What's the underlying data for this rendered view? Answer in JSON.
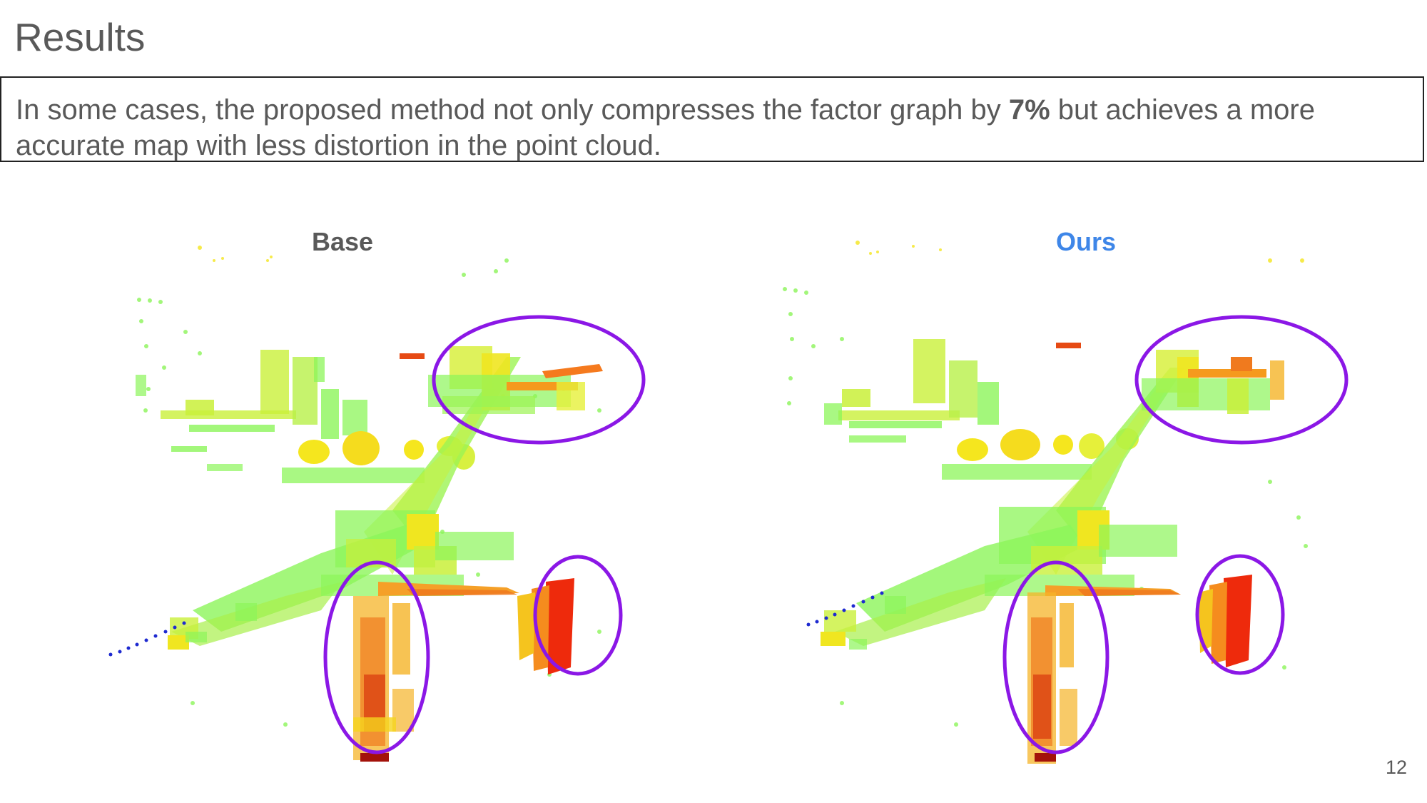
{
  "slide": {
    "title": "Results",
    "callout": {
      "before": "In some cases, the proposed method not only compresses the factor graph by ",
      "bold": "7%",
      "after": " but achieves a more accurate map with less distortion in the point cloud."
    },
    "page_number": "12"
  },
  "panels": [
    {
      "label": "Base",
      "label_color": "#595959",
      "highlight_color": "#8b17e6"
    },
    {
      "label": "Ours",
      "label_color": "#3e86e8",
      "highlight_color": "#8b17e6"
    }
  ],
  "palette": {
    "green": "#8cf55a",
    "yellow_green": "#c9f03a",
    "yellow": "#f5e61e",
    "orange": "#f59a1e",
    "red": "#ee2a0c",
    "dark_red": "#a3120a",
    "blue": "#1e2ad0"
  }
}
